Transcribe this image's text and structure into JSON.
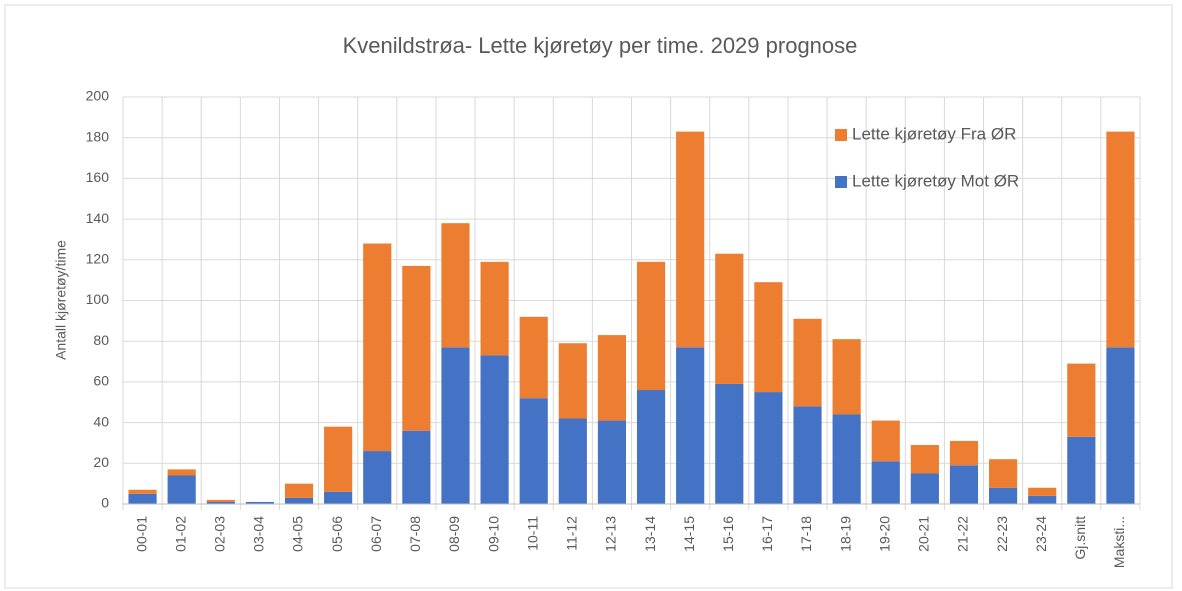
{
  "chart_data": {
    "type": "stacked_bar",
    "title": "Kvenildstrøa- Lette kjøretøy per time. 2029 prognose",
    "y_label": "Antall kjøretøy/time",
    "categories": [
      "00-01",
      "01-02",
      "02-03",
      "03-04",
      "04-05",
      "05-06",
      "06-07",
      "07-08",
      "08-09",
      "09-10",
      "10-11",
      "11-12",
      "12-13",
      "13-14",
      "14-15",
      "15-16",
      "16-17",
      "17-18",
      "18-19",
      "19-20",
      "20-21",
      "21-22",
      "22-23",
      "23-24",
      "Gj.snitt",
      "Maksti..."
    ],
    "series": [
      {
        "name": "Lette kjøretøy Mot ØR",
        "color": "#4472c4",
        "values": [
          5,
          14,
          1,
          1,
          3,
          6,
          26,
          36,
          77,
          73,
          52,
          42,
          41,
          56,
          77,
          59,
          55,
          48,
          44,
          21,
          15,
          19,
          8,
          4,
          33,
          77
        ]
      },
      {
        "name": "Lette kjøretøy Fra ØR",
        "color": "#ed7d31",
        "values": [
          2,
          3,
          1,
          0,
          7,
          32,
          102,
          81,
          61,
          46,
          40,
          37,
          42,
          63,
          106,
          64,
          54,
          43,
          37,
          20,
          14,
          12,
          14,
          4,
          36,
          106
        ]
      }
    ],
    "ylim": [
      0,
      200
    ],
    "yticks": [
      0,
      20,
      40,
      60,
      80,
      100,
      120,
      140,
      160,
      180,
      200
    ],
    "grid": true,
    "legend": "top-right"
  }
}
